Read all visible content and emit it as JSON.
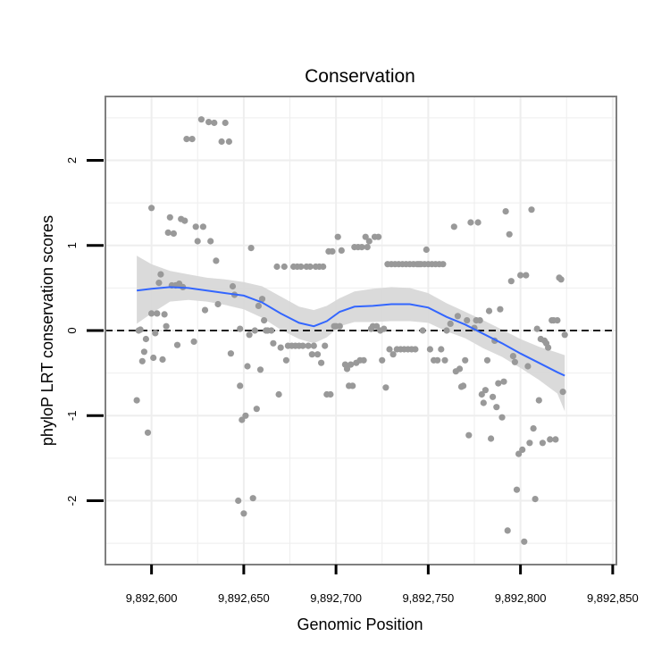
{
  "chart_data": {
    "type": "scatter",
    "title": "Conservation",
    "xlabel": "Genomic Position",
    "ylabel": "phyloP LRT conservation scores",
    "xlim": [
      9892575,
      9892852
    ],
    "ylim": [
      -2.75,
      2.75
    ],
    "x_ticks": [
      9892600,
      9892650,
      9892700,
      9892750,
      9892800,
      9892850
    ],
    "x_tick_labels": [
      "9,892,600",
      "9,892,650",
      "9,892,700",
      "9,892,750",
      "9,892,800",
      "9,892,850"
    ],
    "y_ticks": [
      -2,
      -1,
      0,
      1,
      2
    ],
    "y_tick_labels": [
      "-2",
      "-1",
      "0",
      "1",
      "2"
    ],
    "reference_line": {
      "y": 0,
      "style": "dashed"
    },
    "grid": true,
    "colors": {
      "points": "#999999",
      "smooth": "#3366ff",
      "band": "#d6d6d6",
      "grid": "#eeeeee",
      "frame": "#7f7f7f",
      "refline": "#000000"
    },
    "points": [
      [
        9892592,
        -0.82
      ],
      [
        9892593,
        0.0
      ],
      [
        9892594,
        0.01
      ],
      [
        9892595,
        -0.36
      ],
      [
        9892596,
        -0.25
      ],
      [
        9892597,
        -0.1
      ],
      [
        9892598,
        -1.2
      ],
      [
        9892600,
        1.44
      ],
      [
        9892600,
        0.2
      ],
      [
        9892601,
        -0.32
      ],
      [
        9892602,
        -0.03
      ],
      [
        9892603,
        0.2
      ],
      [
        9892604,
        0.56
      ],
      [
        9892605,
        0.66
      ],
      [
        9892606,
        -0.34
      ],
      [
        9892607,
        0.19
      ],
      [
        9892608,
        0.05
      ],
      [
        9892609,
        1.15
      ],
      [
        9892610,
        1.33
      ],
      [
        9892611,
        0.53
      ],
      [
        9892612,
        1.14
      ],
      [
        9892613,
        0.53
      ],
      [
        9892614,
        -0.17
      ],
      [
        9892615,
        0.55
      ],
      [
        9892616,
        1.31
      ],
      [
        9892617,
        0.51
      ],
      [
        9892618,
        1.29
      ],
      [
        9892619,
        2.25
      ],
      [
        9892622,
        2.25
      ],
      [
        9892623,
        -0.13
      ],
      [
        9892624,
        1.22
      ],
      [
        9892625,
        1.05
      ],
      [
        9892627,
        2.48
      ],
      [
        9892628,
        1.22
      ],
      [
        9892629,
        0.24
      ],
      [
        9892631,
        2.45
      ],
      [
        9892632,
        1.05
      ],
      [
        9892634,
        2.44
      ],
      [
        9892635,
        0.82
      ],
      [
        9892636,
        0.31
      ],
      [
        9892638,
        2.22
      ],
      [
        9892640,
        2.44
      ],
      [
        9892642,
        2.22
      ],
      [
        9892643,
        -0.27
      ],
      [
        9892644,
        0.52
      ],
      [
        9892645,
        0.42
      ],
      [
        9892647,
        -2.0
      ],
      [
        9892648,
        0.02
      ],
      [
        9892648,
        -0.65
      ],
      [
        9892649,
        -1.05
      ],
      [
        9892650,
        -2.15
      ],
      [
        9892651,
        -1.0
      ],
      [
        9892652,
        -0.42
      ],
      [
        9892653,
        -0.05
      ],
      [
        9892654,
        0.97
      ],
      [
        9892655,
        -1.97
      ],
      [
        9892656,
        0.0
      ],
      [
        9892657,
        -0.92
      ],
      [
        9892658,
        0.29
      ],
      [
        9892659,
        -0.46
      ],
      [
        9892660,
        0.37
      ],
      [
        9892661,
        0.12
      ],
      [
        9892662,
        0.0
      ],
      [
        9892663,
        0.0
      ],
      [
        9892665,
        0.0
      ],
      [
        9892666,
        -0.15
      ],
      [
        9892668,
        0.75
      ],
      [
        9892669,
        -0.75
      ],
      [
        9892670,
        -0.2
      ],
      [
        9892672,
        0.75
      ],
      [
        9892673,
        -0.35
      ],
      [
        9892674,
        -0.18
      ],
      [
        9892676,
        -0.18
      ],
      [
        9892677,
        0.75
      ],
      [
        9892678,
        -0.18
      ],
      [
        9892679,
        0.75
      ],
      [
        9892680,
        -0.18
      ],
      [
        9892681,
        0.75
      ],
      [
        9892682,
        -0.18
      ],
      [
        9892684,
        0.75
      ],
      [
        9892685,
        -0.18
      ],
      [
        9892686,
        0.75
      ],
      [
        9892687,
        -0.28
      ],
      [
        9892688,
        -0.18
      ],
      [
        9892689,
        0.75
      ],
      [
        9892690,
        -0.28
      ],
      [
        9892691,
        0.75
      ],
      [
        9892692,
        -0.38
      ],
      [
        9892693,
        0.75
      ],
      [
        9892694,
        -0.18
      ],
      [
        9892695,
        -0.75
      ],
      [
        9892696,
        0.93
      ],
      [
        9892697,
        -0.75
      ],
      [
        9892698,
        0.93
      ],
      [
        9892699,
        0.05
      ],
      [
        9892700,
        0.05
      ],
      [
        9892701,
        1.1
      ],
      [
        9892702,
        0.05
      ],
      [
        9892703,
        0.94
      ],
      [
        9892705,
        -0.4
      ],
      [
        9892706,
        -0.45
      ],
      [
        9892707,
        -0.65
      ],
      [
        9892708,
        -0.4
      ],
      [
        9892709,
        -0.65
      ],
      [
        9892710,
        0.98
      ],
      [
        9892711,
        -0.38
      ],
      [
        9892712,
        0.98
      ],
      [
        9892713,
        -0.35
      ],
      [
        9892714,
        0.98
      ],
      [
        9892715,
        -0.35
      ],
      [
        9892716,
        1.1
      ],
      [
        9892717,
        0.98
      ],
      [
        9892718,
        1.05
      ],
      [
        9892719,
        0.02
      ],
      [
        9892720,
        0.05
      ],
      [
        9892721,
        1.1
      ],
      [
        9892722,
        0.05
      ],
      [
        9892723,
        1.1
      ],
      [
        9892724,
        0.0
      ],
      [
        9892725,
        -0.35
      ],
      [
        9892726,
        0.02
      ],
      [
        9892727,
        -0.67
      ],
      [
        9892728,
        0.78
      ],
      [
        9892729,
        -0.22
      ],
      [
        9892730,
        0.78
      ],
      [
        9892731,
        -0.28
      ],
      [
        9892732,
        0.78
      ],
      [
        9892733,
        -0.22
      ],
      [
        9892734,
        0.78
      ],
      [
        9892735,
        -0.22
      ],
      [
        9892736,
        0.78
      ],
      [
        9892737,
        -0.22
      ],
      [
        9892738,
        0.78
      ],
      [
        9892739,
        -0.22
      ],
      [
        9892740,
        0.78
      ],
      [
        9892741,
        -0.22
      ],
      [
        9892742,
        0.78
      ],
      [
        9892743,
        -0.22
      ],
      [
        9892744,
        0.78
      ],
      [
        9892745,
        0.78
      ],
      [
        9892746,
        0.78
      ],
      [
        9892747,
        0.0
      ],
      [
        9892748,
        0.78
      ],
      [
        9892749,
        0.95
      ],
      [
        9892750,
        0.78
      ],
      [
        9892751,
        -0.22
      ],
      [
        9892752,
        0.78
      ],
      [
        9892753,
        -0.35
      ],
      [
        9892754,
        0.78
      ],
      [
        9892755,
        -0.35
      ],
      [
        9892756,
        0.78
      ],
      [
        9892757,
        -0.22
      ],
      [
        9892758,
        0.78
      ],
      [
        9892759,
        -0.35
      ],
      [
        9892760,
        0.0
      ],
      [
        9892762,
        0.08
      ],
      [
        9892764,
        1.22
      ],
      [
        9892765,
        -0.48
      ],
      [
        9892766,
        0.17
      ],
      [
        9892767,
        -0.45
      ],
      [
        9892768,
        -0.66
      ],
      [
        9892769,
        -0.65
      ],
      [
        9892770,
        -0.35
      ],
      [
        9892771,
        0.12
      ],
      [
        9892772,
        -1.23
      ],
      [
        9892773,
        1.27
      ],
      [
        9892775,
        0.03
      ],
      [
        9892776,
        0.12
      ],
      [
        9892777,
        1.27
      ],
      [
        9892778,
        0.12
      ],
      [
        9892779,
        -0.75
      ],
      [
        9892780,
        -0.85
      ],
      [
        9892781,
        -0.7
      ],
      [
        9892782,
        -0.35
      ],
      [
        9892783,
        0.23
      ],
      [
        9892784,
        -1.27
      ],
      [
        9892785,
        -0.78
      ],
      [
        9892786,
        -0.12
      ],
      [
        9892787,
        -0.9
      ],
      [
        9892788,
        -0.62
      ],
      [
        9892789,
        0.25
      ],
      [
        9892790,
        -1.02
      ],
      [
        9892791,
        -0.6
      ],
      [
        9892792,
        1.4
      ],
      [
        9892793,
        -2.35
      ],
      [
        9892794,
        1.13
      ],
      [
        9892795,
        0.58
      ],
      [
        9892796,
        -0.3
      ],
      [
        9892797,
        -0.37
      ],
      [
        9892798,
        -1.87
      ],
      [
        9892799,
        -1.45
      ],
      [
        9892800,
        0.65
      ],
      [
        9892801,
        -1.4
      ],
      [
        9892802,
        -2.48
      ],
      [
        9892803,
        0.65
      ],
      [
        9892804,
        -0.42
      ],
      [
        9892805,
        -1.32
      ],
      [
        9892806,
        1.42
      ],
      [
        9892807,
        -1.15
      ],
      [
        9892808,
        -1.98
      ],
      [
        9892809,
        0.02
      ],
      [
        9892810,
        -0.82
      ],
      [
        9892811,
        -0.1
      ],
      [
        9892812,
        -1.32
      ],
      [
        9892813,
        -0.12
      ],
      [
        9892814,
        -0.15
      ],
      [
        9892815,
        -0.2
      ],
      [
        9892816,
        -1.28
      ],
      [
        9892817,
        0.12
      ],
      [
        9892818,
        0.12
      ],
      [
        9892819,
        -1.28
      ],
      [
        9892820,
        0.12
      ],
      [
        9892821,
        0.62
      ],
      [
        9892822,
        0.6
      ],
      [
        9892823,
        -0.72
      ],
      [
        9892824,
        -0.05
      ]
    ],
    "smooth": [
      [
        9892592,
        0.47
      ],
      [
        9892600,
        0.49
      ],
      [
        9892610,
        0.51
      ],
      [
        9892620,
        0.5
      ],
      [
        9892630,
        0.47
      ],
      [
        9892640,
        0.44
      ],
      [
        9892650,
        0.41
      ],
      [
        9892660,
        0.33
      ],
      [
        9892670,
        0.2
      ],
      [
        9892680,
        0.09
      ],
      [
        9892688,
        0.05
      ],
      [
        9892695,
        0.11
      ],
      [
        9892702,
        0.22
      ],
      [
        9892710,
        0.28
      ],
      [
        9892720,
        0.29
      ],
      [
        9892730,
        0.31
      ],
      [
        9892740,
        0.31
      ],
      [
        9892750,
        0.27
      ],
      [
        9892760,
        0.16
      ],
      [
        9892770,
        0.07
      ],
      [
        9892780,
        -0.04
      ],
      [
        9892790,
        -0.15
      ],
      [
        9892800,
        -0.27
      ],
      [
        9892810,
        -0.38
      ],
      [
        9892820,
        -0.49
      ],
      [
        9892824,
        -0.53
      ]
    ],
    "band_upper": [
      [
        9892592,
        0.88
      ],
      [
        9892600,
        0.78
      ],
      [
        9892610,
        0.7
      ],
      [
        9892620,
        0.66
      ],
      [
        9892630,
        0.62
      ],
      [
        9892640,
        0.6
      ],
      [
        9892650,
        0.57
      ],
      [
        9892660,
        0.52
      ],
      [
        9892670,
        0.4
      ],
      [
        9892680,
        0.28
      ],
      [
        9892688,
        0.24
      ],
      [
        9892695,
        0.29
      ],
      [
        9892702,
        0.38
      ],
      [
        9892710,
        0.46
      ],
      [
        9892720,
        0.49
      ],
      [
        9892730,
        0.51
      ],
      [
        9892740,
        0.5
      ],
      [
        9892750,
        0.44
      ],
      [
        9892760,
        0.32
      ],
      [
        9892770,
        0.22
      ],
      [
        9892780,
        0.12
      ],
      [
        9892790,
        0.01
      ],
      [
        9892800,
        -0.1
      ],
      [
        9892810,
        -0.19
      ],
      [
        9892820,
        -0.26
      ],
      [
        9892824,
        -0.29
      ]
    ],
    "band_lower": [
      [
        9892592,
        0.08
      ],
      [
        9892600,
        0.2
      ],
      [
        9892610,
        0.34
      ],
      [
        9892620,
        0.36
      ],
      [
        9892630,
        0.34
      ],
      [
        9892640,
        0.3
      ],
      [
        9892650,
        0.25
      ],
      [
        9892660,
        0.15
      ],
      [
        9892670,
        0.01
      ],
      [
        9892680,
        -0.1
      ],
      [
        9892688,
        -0.15
      ],
      [
        9892695,
        -0.08
      ],
      [
        9892702,
        0.05
      ],
      [
        9892710,
        0.1
      ],
      [
        9892720,
        0.1
      ],
      [
        9892730,
        0.11
      ],
      [
        9892740,
        0.11
      ],
      [
        9892750,
        0.09
      ],
      [
        9892760,
        -0.01
      ],
      [
        9892770,
        -0.09
      ],
      [
        9892780,
        -0.21
      ],
      [
        9892790,
        -0.31
      ],
      [
        9892800,
        -0.44
      ],
      [
        9892810,
        -0.58
      ],
      [
        9892820,
        -0.74
      ],
      [
        9892824,
        -0.95
      ]
    ]
  }
}
